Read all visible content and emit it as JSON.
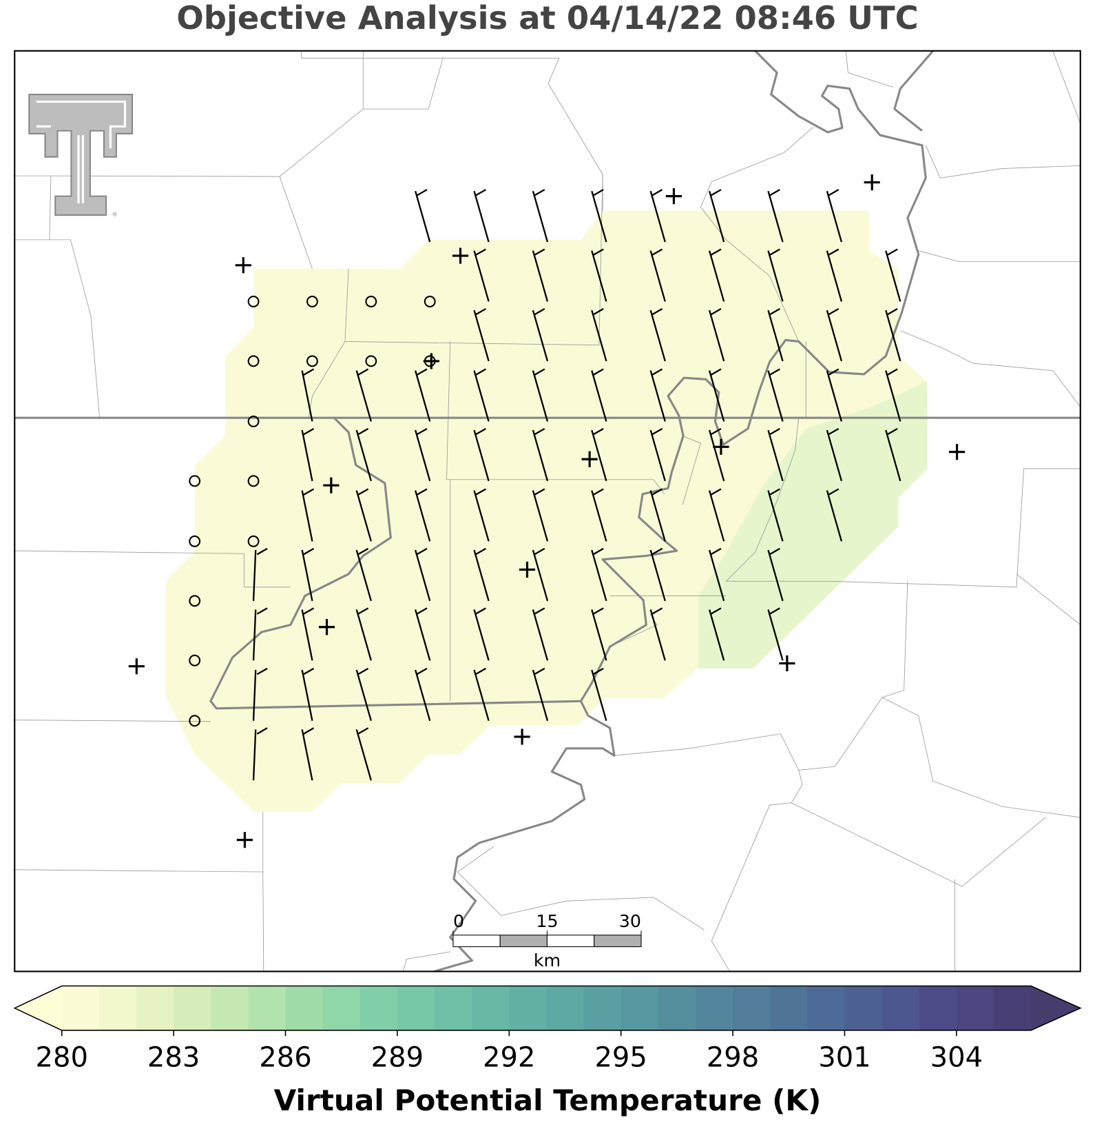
{
  "title": "Objective Analysis at 04/14/22 08:46 UTC",
  "colorbar": {
    "label": "Virtual Potential Temperature (K)",
    "levels": [
      280,
      281,
      282,
      283,
      284,
      285,
      286,
      287,
      288,
      289,
      290,
      291,
      292,
      293,
      294,
      295,
      296,
      297,
      298,
      299,
      300,
      301,
      302,
      303,
      304,
      305,
      306
    ],
    "colors": [
      "#fbfbd6",
      "#f3f8cc",
      "#e6f2c3",
      "#d6edbb",
      "#c5e8b3",
      "#b2e2ad",
      "#a0dcaa",
      "#8fd6a8",
      "#81cfa8",
      "#76c8a7",
      "#6ec1a6",
      "#67b9a6",
      "#62b1a5",
      "#5ea9a4",
      "#5aa0a2",
      "#5798a0",
      "#558f9e",
      "#53869c",
      "#517d9a",
      "#4f7498",
      "#4e6a96",
      "#4d6093",
      "#4d568f",
      "#4d4c88",
      "#4b4580",
      "#483f74"
    ],
    "under_color": "#fdfdd6",
    "over_color": "#473d6c",
    "ticks": [
      280,
      283,
      286,
      289,
      292,
      295,
      298,
      301,
      304
    ]
  },
  "scale_bar": {
    "ticks": [
      0,
      15,
      30
    ],
    "unit": "km"
  }
}
